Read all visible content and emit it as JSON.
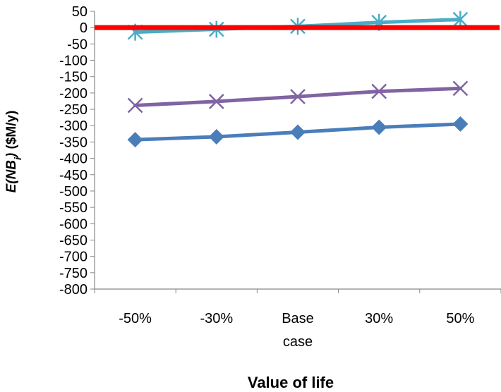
{
  "chart_data": {
    "type": "line",
    "title": "",
    "xlabel": "Value of life",
    "ylabel": "E(NBi) ($M/y)",
    "ylim": [
      -800,
      50
    ],
    "y_tick_step": 50,
    "grid": false,
    "legend": "none",
    "categories": [
      "-50%",
      "-30%",
      "Base case",
      "30%",
      "50%"
    ],
    "category_lines": [
      [
        "-50%"
      ],
      [
        "-30%"
      ],
      [
        "Base",
        "case"
      ],
      [
        "30%"
      ],
      [
        "50%"
      ]
    ],
    "series": [
      {
        "values": [
          -343,
          -334,
          -320,
          -305,
          -295
        ],
        "marker": "diamond",
        "color": "#4a7ebb"
      },
      {
        "values": [
          -238,
          -226,
          -211,
          -195,
          -186
        ],
        "marker": "x",
        "color": "#8064a2"
      },
      {
        "values": [
          -14,
          -5,
          4,
          16,
          25
        ],
        "marker": "asterisk",
        "color": "#4bacc6"
      }
    ],
    "reference_line": {
      "y": 0,
      "color": "#ff0000"
    }
  }
}
